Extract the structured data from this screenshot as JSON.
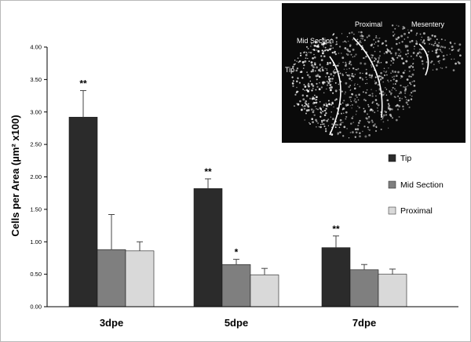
{
  "chart_data": {
    "type": "bar",
    "title": "",
    "xlabel": "",
    "ylabel": "Cells per Area (µm² x100)",
    "categories": [
      "3dpe",
      "5dpe",
      "7dpe"
    ],
    "ylim": [
      0,
      4
    ],
    "yticks": [
      "0.00",
      "0.50",
      "1.00",
      "1.50",
      "2.00",
      "2.50",
      "3.00",
      "3.50",
      "4.00"
    ],
    "grid": false,
    "legend_position": "right",
    "series": [
      {
        "name": "Tip",
        "color": "#2b2b2b",
        "values": [
          2.92,
          1.82,
          0.91
        ],
        "errors": [
          0.41,
          0.15,
          0.18
        ],
        "significance": [
          "**",
          "**",
          "**"
        ]
      },
      {
        "name": "Mid Section",
        "color": "#7f7f7f",
        "values": [
          0.88,
          0.65,
          0.57
        ],
        "errors": [
          0.54,
          0.08,
          0.08
        ],
        "significance": [
          "",
          "*",
          ""
        ]
      },
      {
        "name": "Proximal",
        "color": "#d9d9d9",
        "values": [
          0.86,
          0.49,
          0.5
        ],
        "errors": [
          0.14,
          0.1,
          0.08
        ],
        "significance": [
          "",
          "",
          ""
        ]
      }
    ]
  },
  "inset": {
    "labels": [
      "Tip",
      "Mid Section",
      "Proximal",
      "Mesentery"
    ]
  }
}
